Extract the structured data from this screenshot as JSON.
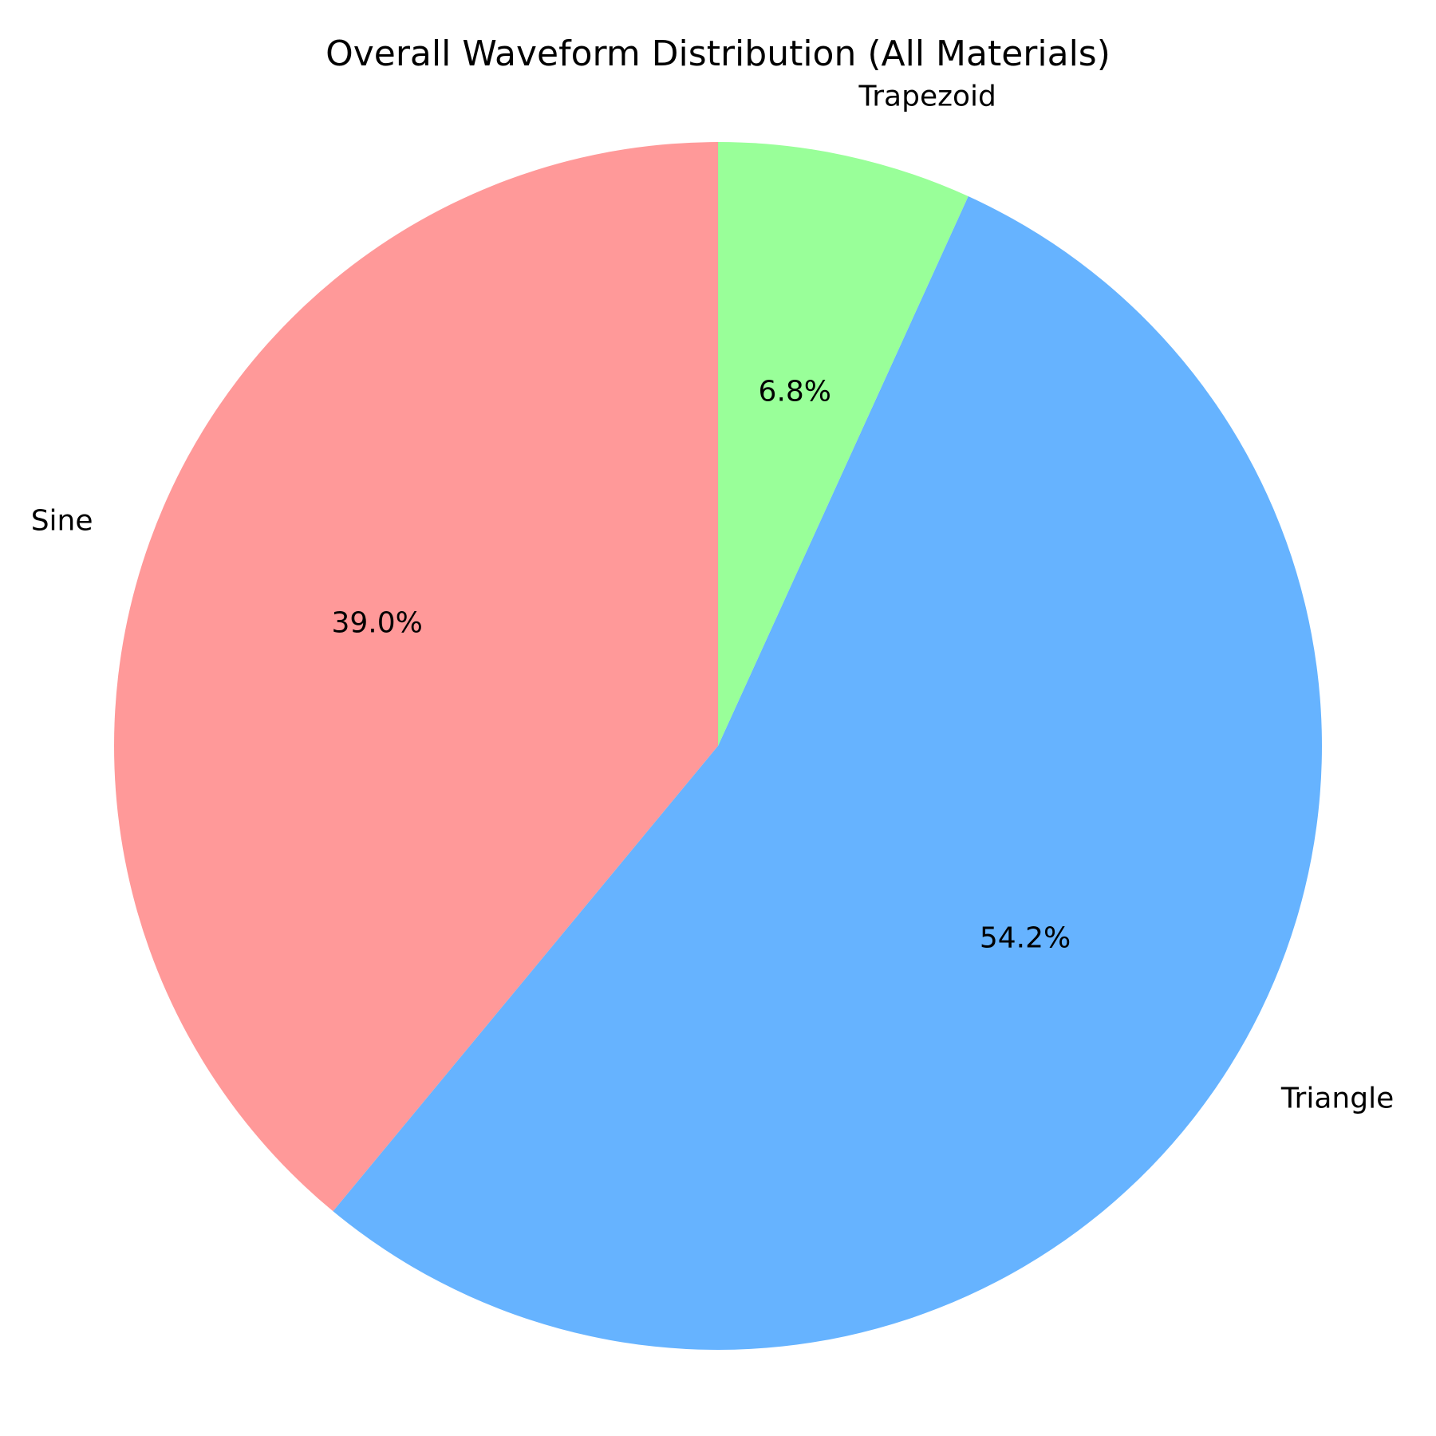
{
  "chart_data": {
    "type": "pie",
    "title": "Overall Waveform Distribution (All Materials)",
    "start_angle_deg": 90,
    "direction": "counterclockwise",
    "slices": [
      {
        "label": "Sine",
        "value": 39.0,
        "pct_label": "39.0%",
        "color": "#ff9999"
      },
      {
        "label": "Triangle",
        "value": 54.2,
        "pct_label": "54.2%",
        "color": "#66b3ff"
      },
      {
        "label": "Trapezoid",
        "value": 6.8,
        "pct_label": "6.8%",
        "color": "#99ff99"
      }
    ]
  }
}
